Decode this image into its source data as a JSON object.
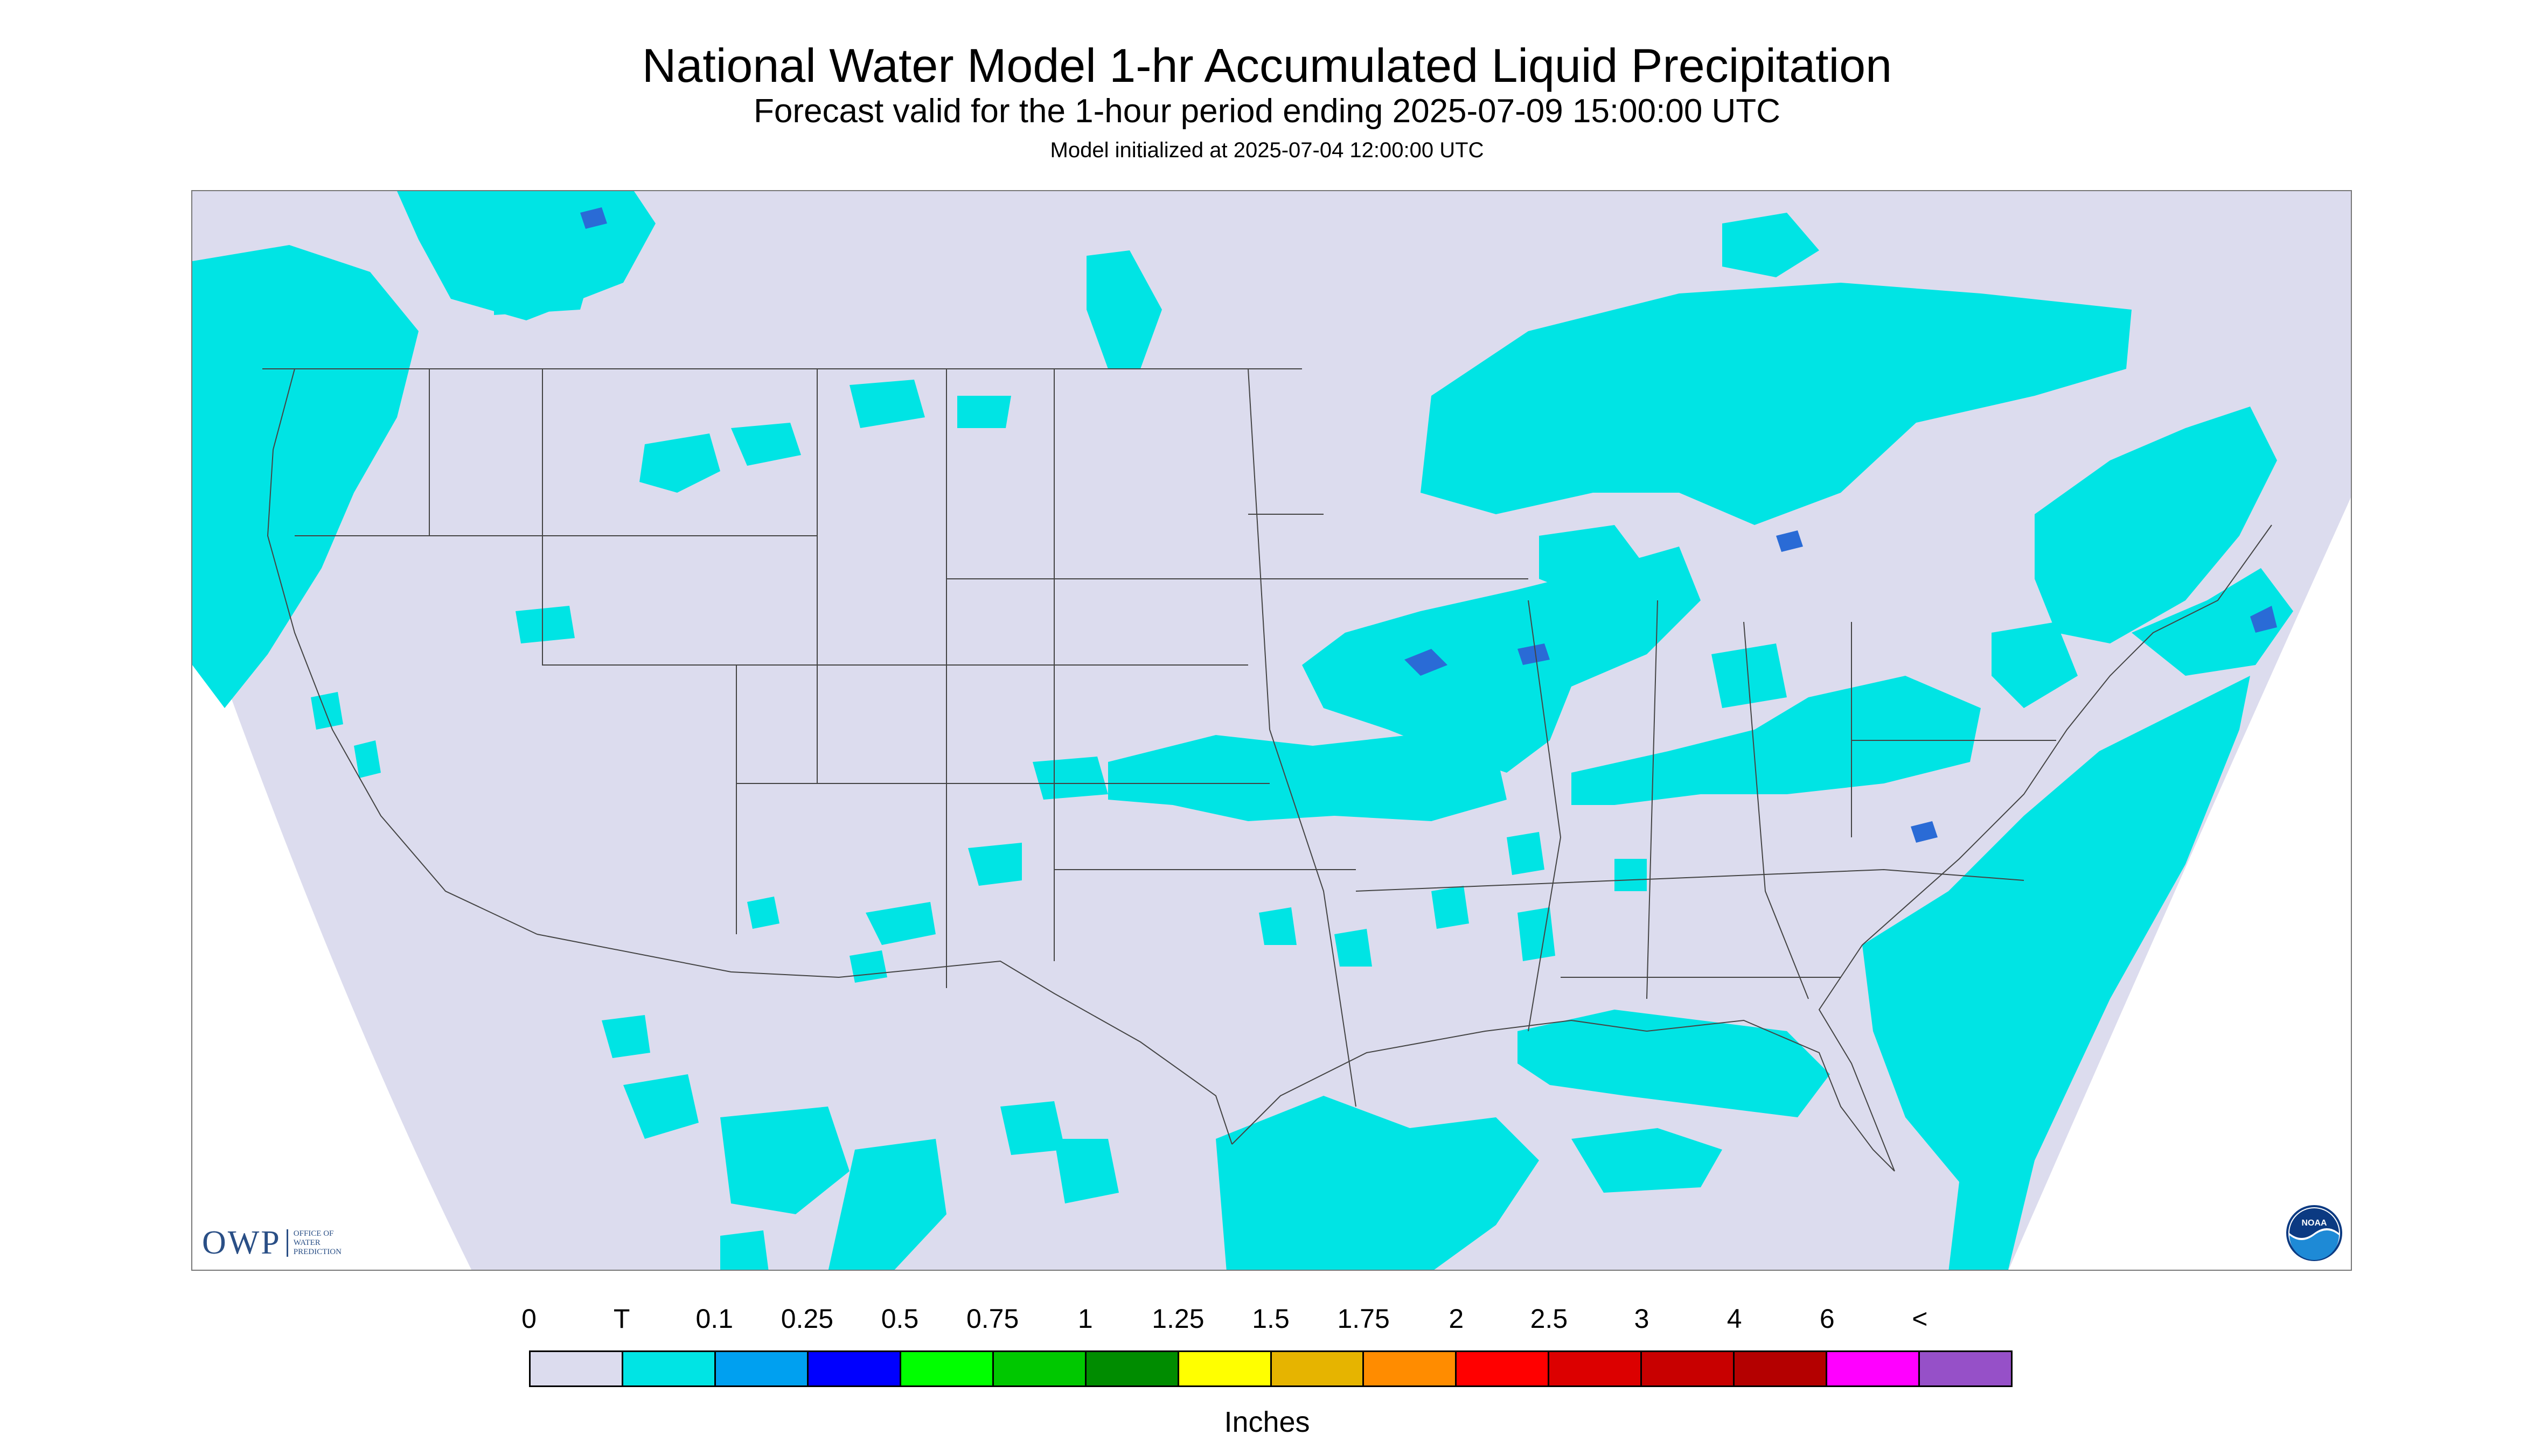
{
  "header": {
    "title": "National Water Model 1-hr Accumulated Liquid Precipitation",
    "subtitle": "Forecast valid for the 1-hour period ending 2025-07-09 15:00:00 UTC",
    "init": "Model initialized at 2025-07-04 12:00:00 UTC"
  },
  "map": {
    "region": "Continental United States",
    "background_color": "#dcdcee",
    "outside_color": "#ffffff",
    "precip_color_trace": "#00e4e4",
    "precip_color_light": "#1ea0f0",
    "precip_color_medium": "#2a6bd6",
    "state_line_color": "#444444"
  },
  "logos": {
    "owp_text": "OWP",
    "owp_sub": [
      "Office of",
      "Water",
      "Prediction"
    ],
    "noaa_text": "NOAA"
  },
  "legend": {
    "labels": [
      "0",
      "T",
      "0.1",
      "0.25",
      "0.5",
      "0.75",
      "1",
      "1.25",
      "1.5",
      "1.75",
      "2",
      "2.5",
      "3",
      "4",
      "6",
      "<"
    ],
    "colors": [
      "#dcdcee",
      "#00e4e4",
      "#00a0f0",
      "#0000ff",
      "#00ff00",
      "#00c800",
      "#008c00",
      "#ffff00",
      "#e6b400",
      "#ff8c00",
      "#ff0000",
      "#dc0000",
      "#c80000",
      "#b40000",
      "#ff00ff",
      "#9650c8"
    ],
    "units": "Inches"
  }
}
